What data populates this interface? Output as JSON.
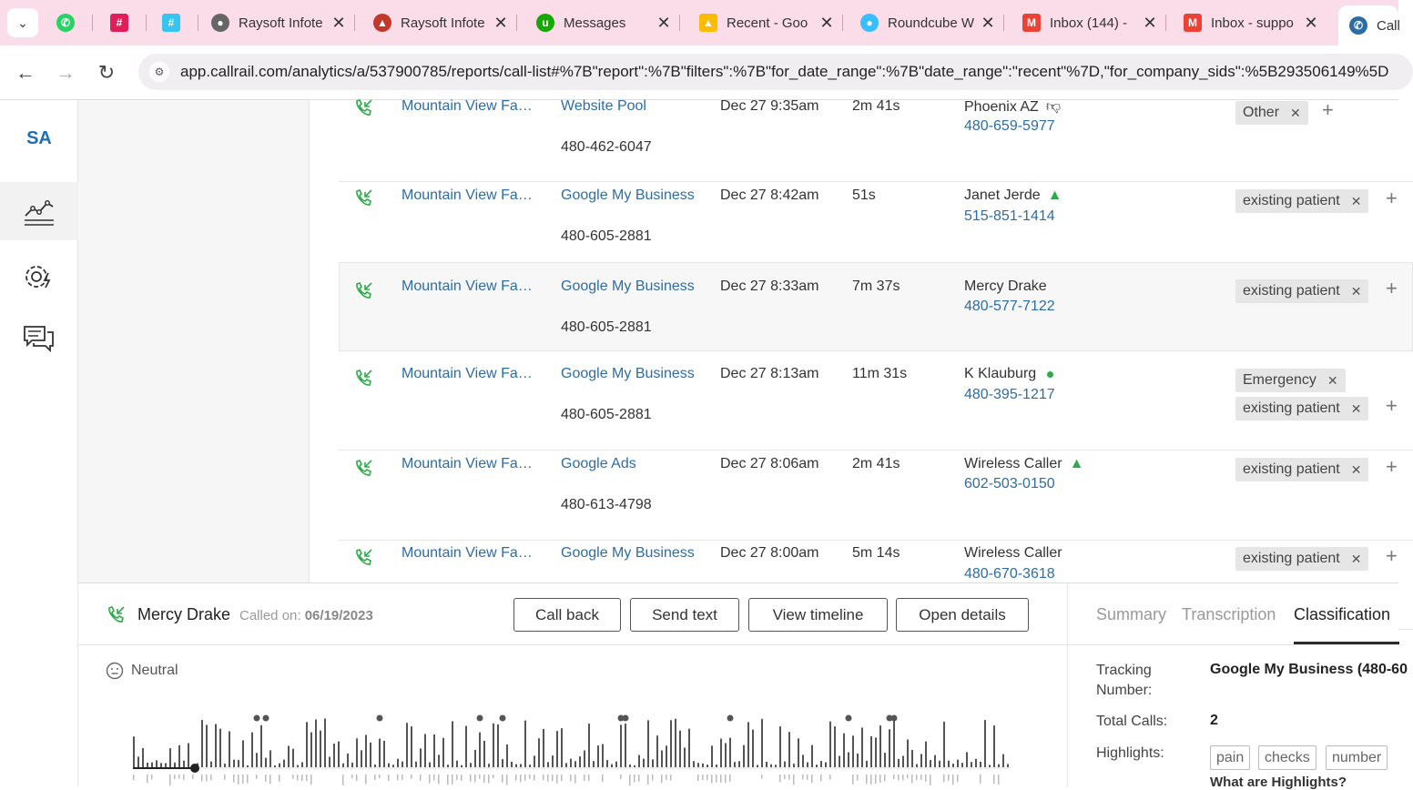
{
  "browser": {
    "tabs": [
      {
        "title": "",
        "favicon": "whatsapp-icon",
        "color": "#25d366"
      },
      {
        "title": "",
        "favicon": "slack-icon",
        "color": "#e01e5a"
      },
      {
        "title": "",
        "favicon": "slack-icon",
        "color": "#e01e5a"
      },
      {
        "title": "Raysoft Infote",
        "favicon": "globe-icon",
        "color": "#555555"
      },
      {
        "title": "Raysoft Infote",
        "favicon": "graduation-icon",
        "color": "#c0392b"
      },
      {
        "title": "Messages",
        "favicon": "upwork-icon",
        "color": "#14a800"
      },
      {
        "title": "Recent - Goo",
        "favicon": "google-drive-icon",
        "color": "#fbbc04"
      },
      {
        "title": "Roundcube W",
        "favicon": "roundcube-icon",
        "color": "#37beff"
      },
      {
        "title": "Inbox (144) -",
        "favicon": "gmail-icon",
        "color": "#ea4335"
      },
      {
        "title": "Inbox - suppo",
        "favicon": "gmail-icon",
        "color": "#ea4335"
      },
      {
        "title": "Call",
        "favicon": "callrail-icon",
        "color": "#2e6da4"
      }
    ],
    "url": "app.callrail.com/analytics/a/537900785/reports/call-list#%7B\"report\":%7B\"filters\":%7B\"for_date_range\":%7B\"date_range\":\"recent\"%7D,\"for_company_sids\":%5B293506149%5D"
  },
  "leftnav": {
    "avatar": "SA",
    "items": [
      "analytics-icon",
      "settings-automation-icon",
      "messages-icon"
    ]
  },
  "calls": [
    {
      "company": "Mountain View Fa…",
      "source": "Website Pool",
      "source_number": "480-462-6047",
      "date": "Dec 27 9:35am",
      "duration": "2m 41s",
      "caller": "Phoenix AZ",
      "caller_icon": "thumbs-down-icon",
      "phone": "480-659-5977",
      "tags": [
        "Other"
      ]
    },
    {
      "company": "Mountain View Fa…",
      "source": "Google My Business",
      "source_number": "480-605-2881",
      "date": "Dec 27 8:42am",
      "duration": "51s",
      "caller": "Janet Jerde",
      "caller_icon": "thumbs-up-icon",
      "phone": "515-851-1414",
      "tags": [
        "existing patient"
      ]
    },
    {
      "company": "Mountain View Fa…",
      "source": "Google My Business",
      "source_number": "480-605-2881",
      "date": "Dec 27 8:33am",
      "duration": "7m 37s",
      "caller": "Mercy Drake",
      "caller_icon": "",
      "phone": "480-577-7122",
      "tags": [
        "existing patient"
      ]
    },
    {
      "company": "Mountain View Fa…",
      "source": "Google My Business",
      "source_number": "480-605-2881",
      "date": "Dec 27 8:13am",
      "duration": "11m 31s",
      "caller": "K Klauburg",
      "caller_icon": "green-dot-icon",
      "phone": "480-395-1217",
      "tags": [
        "Emergency",
        "existing patient"
      ]
    },
    {
      "company": "Mountain View Fa…",
      "source": "Google Ads",
      "source_number": "480-613-4798",
      "date": "Dec 27 8:06am",
      "duration": "2m 41s",
      "caller": "Wireless Caller",
      "caller_icon": "thumbs-up-icon",
      "phone": "602-503-0150",
      "tags": [
        "existing patient"
      ]
    },
    {
      "company": "Mountain View Fa…",
      "source": "Google My Business",
      "source_number": "",
      "date": "Dec 27 8:00am",
      "duration": "5m 14s",
      "caller": "Wireless Caller",
      "caller_icon": "",
      "phone": "480-670-3618",
      "tags": [
        "existing patient"
      ]
    }
  ],
  "detail": {
    "name": "Mercy Drake",
    "called_on_label": "Called on:",
    "called_on_date": "06/19/2023",
    "buttons": {
      "call_back": "Call back",
      "send_text": "Send text",
      "view_timeline": "View timeline",
      "open_details": "Open details"
    },
    "sentiment": "Neutral",
    "tabs": {
      "summary": "Summary",
      "transcription": "Transcription",
      "classification": "Classification"
    },
    "tracking_label": "Tracking Number:",
    "tracking_value": "Google My Business (480-60",
    "total_calls_label": "Total Calls:",
    "total_calls_value": "2",
    "highlights_label": "Highlights:",
    "highlights": [
      "pain",
      "checks",
      "number"
    ],
    "what_are": "What are Highlights?"
  },
  "colors": {
    "link": "#2e6da4",
    "accent_green": "#2eaa4a",
    "tab_strip": "#fadde8"
  }
}
